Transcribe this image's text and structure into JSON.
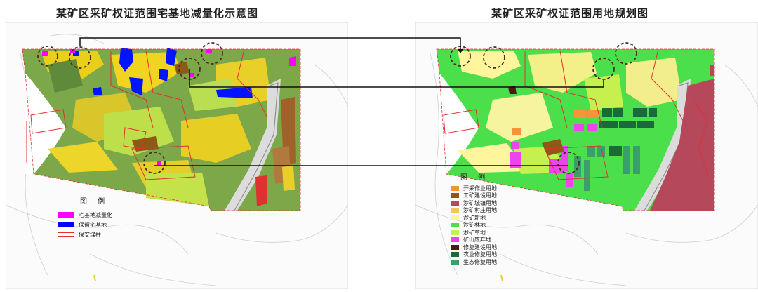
{
  "left_map": {
    "title": "某矿区采矿权证范围宅基地减量化示意图",
    "legend": {
      "title": "图 例",
      "items": [
        {
          "label": "宅基地减量化",
          "color": "#ff00ff",
          "kind": "fill"
        },
        {
          "label": "保留宅基地",
          "color": "#0000ff",
          "kind": "fill"
        },
        {
          "label": "保安煤柱",
          "color": "#e03030",
          "kind": "line"
        }
      ]
    }
  },
  "right_map": {
    "title": "某矿区采矿权证范围用地规划图",
    "legend": {
      "title": "图 例",
      "items": [
        {
          "label": "开采作业用地",
          "color": "#f7943a"
        },
        {
          "label": "工矿建设用地",
          "color": "#8b5a16"
        },
        {
          "label": "涉矿城镇用地",
          "color": "#b5495b"
        },
        {
          "label": "涉矿村庄用地",
          "color": "#f2c45a"
        },
        {
          "label": "涉矿耕地",
          "color": "#fff59d"
        },
        {
          "label": "涉矿林地",
          "color": "#4be04b"
        },
        {
          "label": "涉矿草地",
          "color": "#c6f04e"
        },
        {
          "label": "矿山废弃地",
          "color": "#ee44ee"
        },
        {
          "label": "修复建设用地",
          "color": "#4a1a10"
        },
        {
          "label": "农业修复用地",
          "color": "#1b6b3a"
        },
        {
          "label": "生态修复用地",
          "color": "#3aa06a"
        }
      ]
    }
  }
}
